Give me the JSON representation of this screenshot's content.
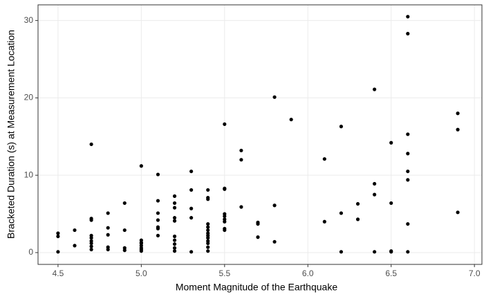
{
  "chart_data": {
    "type": "scatter",
    "x_label": "Moment Magnitude of the Earthquake",
    "y_label": "Bracketed Duration (s) at Measurement Location",
    "color": "#000000",
    "grid": true,
    "xlim": [
      4.38,
      7.045
    ],
    "ylim": [
      -1.525,
      32.025
    ],
    "xticks": [
      {
        "value": 4.5,
        "label": "4.5"
      },
      {
        "value": 5,
        "label": "5.0"
      },
      {
        "value": 5.5,
        "label": "5.5"
      },
      {
        "value": 6,
        "label": "6.0"
      },
      {
        "value": 6.5,
        "label": "6.5"
      },
      {
        "value": 7,
        "label": "7.0"
      }
    ],
    "yticks": [
      0,
      10,
      20,
      30
    ],
    "x": [
      4.5,
      4.5,
      4.5,
      4.6,
      4.6,
      4.7,
      4.7,
      4.7,
      4.7,
      4.7,
      4.7,
      4.7,
      4.7,
      4.7,
      4.8,
      4.8,
      4.8,
      4.8,
      4.8,
      4.9,
      4.9,
      4.9,
      4.9,
      5.0,
      5.0,
      5.0,
      5.0,
      5.0,
      5.0,
      5.0,
      5.0,
      5.1,
      5.1,
      5.1,
      5.1,
      5.1,
      5.1,
      5.1,
      5.2,
      5.2,
      5.2,
      5.2,
      5.2,
      5.2,
      5.2,
      5.2,
      5.2,
      5.2,
      5.3,
      5.3,
      5.3,
      5.3,
      5.3,
      5.4,
      5.4,
      5.4,
      5.4,
      5.4,
      5.4,
      5.4,
      5.4,
      5.4,
      5.4,
      5.4,
      5.4,
      5.4,
      5.5,
      5.5,
      5.5,
      5.5,
      5.5,
      5.5,
      5.5,
      5.5,
      5.5,
      5.6,
      5.6,
      5.6,
      5.7,
      5.7,
      5.7,
      5.8,
      5.8,
      5.8,
      5.9,
      6.1,
      6.1,
      6.2,
      6.2,
      6.2,
      6.3,
      6.3,
      6.4,
      6.4,
      6.4,
      6.4,
      6.5,
      6.5,
      6.5,
      6.5,
      6.6,
      6.6,
      6.6,
      6.6,
      6.6,
      6.6,
      6.6,
      6.6,
      6.9,
      6.9,
      6.9
    ],
    "values": [
      2.5,
      2.1,
      0.1,
      2.9,
      0.9,
      14.0,
      4.4,
      4.2,
      2.2,
      1.9,
      1.5,
      1.2,
      0.8,
      0.4,
      5.1,
      3.2,
      2.3,
      0.7,
      0.4,
      6.4,
      2.9,
      0.6,
      0.3,
      11.2,
      1.6,
      1.3,
      1.2,
      0.9,
      0.6,
      0.4,
      0.2,
      10.1,
      6.7,
      5.1,
      4.2,
      3.3,
      3.1,
      2.2,
      7.3,
      6.4,
      5.8,
      4.5,
      4.1,
      2.1,
      1.6,
      1.1,
      0.6,
      0.2,
      10.5,
      8.1,
      5.7,
      4.5,
      0.1,
      8.1,
      7.1,
      6.9,
      3.7,
      3.3,
      2.9,
      2.5,
      2.2,
      1.9,
      1.5,
      1.2,
      0.7,
      0.2,
      16.6,
      8.3,
      8.2,
      5.0,
      4.7,
      4.3,
      4.0,
      3.1,
      2.9,
      13.2,
      12.0,
      5.9,
      3.9,
      3.7,
      2.0,
      20.1,
      6.1,
      1.4,
      17.2,
      12.1,
      4.0,
      16.3,
      5.1,
      0.1,
      6.3,
      4.3,
      21.1,
      8.9,
      7.5,
      0.1,
      14.2,
      6.4,
      0.2,
      0.1,
      30.5,
      28.3,
      15.3,
      12.8,
      10.5,
      9.4,
      3.7,
      0.1,
      18.0,
      15.9,
      5.2
    ]
  }
}
